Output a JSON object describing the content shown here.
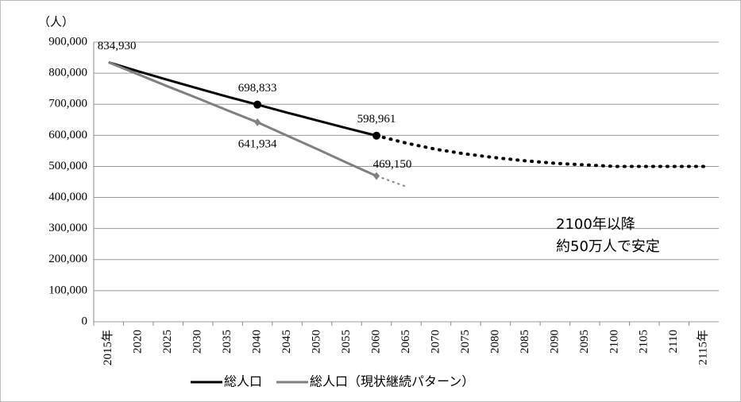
{
  "chart_data": {
    "type": "line",
    "y_unit": "（人）",
    "categories": [
      "2015年",
      "2020",
      "2025",
      "2030",
      "2035",
      "2040",
      "2045",
      "2050",
      "2055",
      "2060",
      "2065",
      "2070",
      "2075",
      "2080",
      "2085",
      "2090",
      "2095",
      "2100",
      "2105",
      "2110",
      "2115年"
    ],
    "series": [
      {
        "name": "総人口",
        "color": "#000000",
        "marker": "circle",
        "markers": [
          5,
          9
        ],
        "values": [
          834930,
          806000,
          778000,
          751000,
          724000,
          698833,
          673000,
          648000,
          623000,
          598961,
          null,
          null,
          null,
          null,
          null,
          null,
          null,
          null,
          null,
          null,
          null
        ],
        "projection": [
          null,
          null,
          null,
          null,
          null,
          null,
          null,
          null,
          null,
          598961,
          575000,
          555000,
          540000,
          528000,
          518000,
          510000,
          505000,
          500000,
          500000,
          500000,
          500000
        ],
        "value_labels": [
          "834,930",
          null,
          null,
          null,
          null,
          "698,833",
          null,
          null,
          null,
          "598,961",
          null,
          null,
          null,
          null,
          null,
          null,
          null,
          null,
          null,
          null,
          null
        ]
      },
      {
        "name": "総人口（現状継続パターン）",
        "color": "#808080",
        "marker": "diamond",
        "markers": [
          5,
          9
        ],
        "values": [
          834930,
          796000,
          757000,
          719000,
          680000,
          641934,
          599000,
          556000,
          512000,
          469150,
          null,
          null,
          null,
          null,
          null,
          null,
          null,
          null,
          null,
          null,
          null
        ],
        "projection": [
          null,
          null,
          null,
          null,
          null,
          null,
          null,
          null,
          null,
          469150,
          435000,
          null,
          null,
          null,
          null,
          null,
          null,
          null,
          null,
          null,
          null
        ],
        "value_labels": [
          null,
          null,
          null,
          null,
          null,
          "641,934",
          null,
          null,
          null,
          "469,150",
          null,
          null,
          null,
          null,
          null,
          null,
          null,
          null,
          null,
          null,
          null
        ]
      }
    ],
    "ylim": [
      0,
      900000
    ],
    "yticks": [
      0,
      {
        "value": 100000,
        "label": "100,000"
      },
      {
        "value": 200000,
        "label": "200,000"
      },
      {
        "value": 300000,
        "label": "300,000"
      },
      {
        "value": 400000,
        "label": "400,000"
      },
      {
        "value": 500000,
        "label": "500,000"
      },
      {
        "value": 600000,
        "label": "600,000"
      },
      {
        "value": 700000,
        "label": "700,000"
      },
      {
        "value": 800000,
        "label": "800,000"
      },
      {
        "value": 900000,
        "label": "900,000"
      }
    ],
    "grid": true,
    "annotation": [
      "2100年以降",
      "約50万人で安定"
    ],
    "legend": "bottom"
  }
}
